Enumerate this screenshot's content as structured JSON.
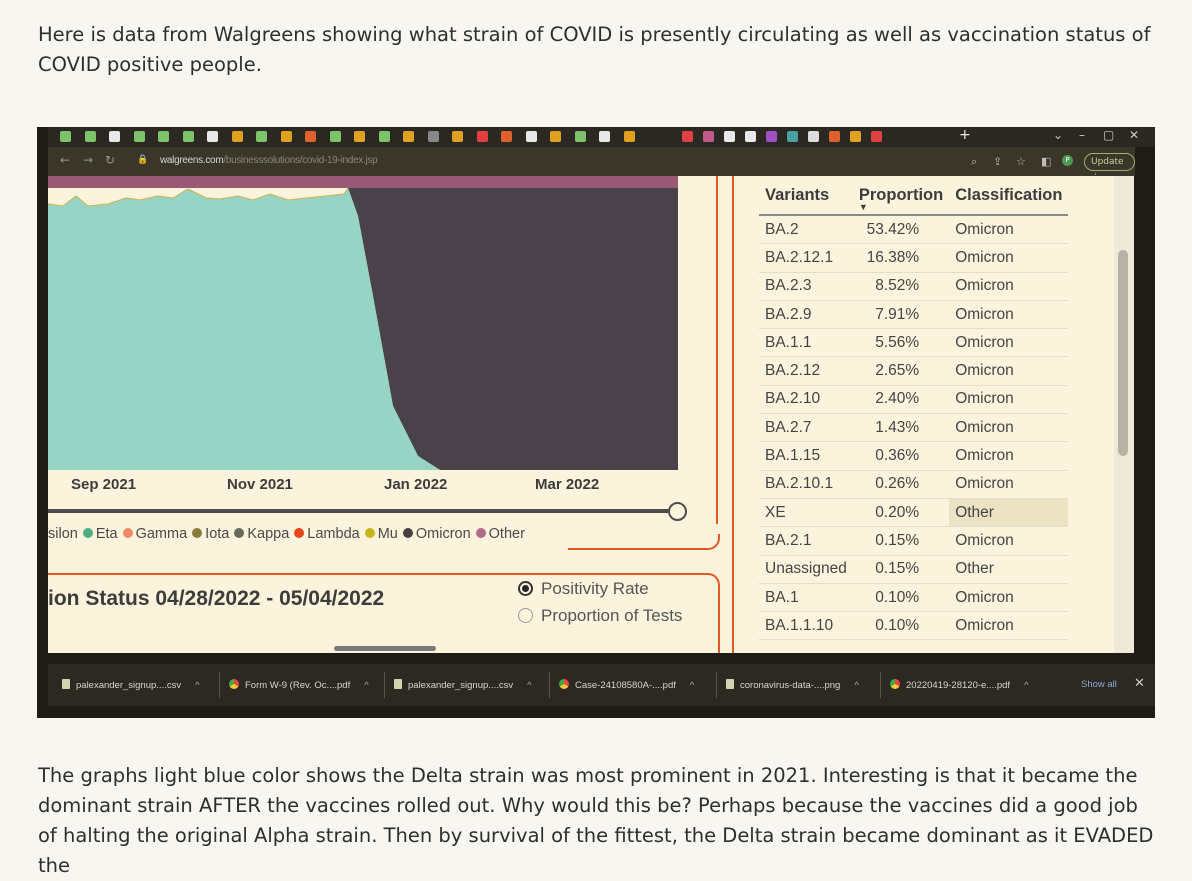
{
  "intro_text": "Here is data from Walgreens showing what strain of COVID is presently circulating as well as vaccination status of COVID positive people.",
  "outro_text": "The graphs light blue color shows the Delta strain was most prominent in 2021. Interesting is that it became the dominant strain AFTER the vaccines rolled out. Why would this be? Perhaps because the vaccines did a good job of halting the original Alpha strain. Then by survival of the fittest, the Delta strain became dominant as it EVADED the",
  "browser": {
    "url_host": "walgreens.com",
    "url_path": "/businesssolutions/covid-19-index.jsp",
    "update_label": "Update",
    "window_controls": {
      "minimize": "–",
      "maximize": "▢",
      "close": "✕"
    },
    "new_tab": "+"
  },
  "chart": {
    "x_ticks": [
      "Sep 2021",
      "Nov 2021",
      "Jan 2022",
      "Mar 2022"
    ],
    "legend": [
      {
        "name": "silon",
        "color": ""
      },
      {
        "name": "Eta",
        "color": "#4caf7d"
      },
      {
        "name": "Gamma",
        "color": "#f08a6a"
      },
      {
        "name": "Iota",
        "color": "#8a7a3a"
      },
      {
        "name": "Kappa",
        "color": "#6a6a5a"
      },
      {
        "name": "Lambda",
        "color": "#e8461c"
      },
      {
        "name": "Mu",
        "color": "#c9b41a"
      },
      {
        "name": "Omicron",
        "color": "#463f45"
      },
      {
        "name": "Other",
        "color": "#b06a8a"
      }
    ],
    "status_title": "ion Status 04/28/2022 - 05/04/2022",
    "radio_positivity": "Positivity Rate",
    "radio_proportion": "Proportion of Tests"
  },
  "chart_data": {
    "type": "area",
    "x": [
      "Sep 2021",
      "Nov 2021",
      "Jan 2022",
      "Mar 2022"
    ],
    "series_colors": {
      "Delta": "#96d4c6",
      "Omicron": "#4a424a",
      "Other": "#9a5a75"
    }
  },
  "table": {
    "headers": [
      "Variants",
      "Proportion",
      "Classification"
    ],
    "sort_indicator": "▼",
    "rows": [
      [
        "BA.2",
        "53.42%",
        "Omicron"
      ],
      [
        "BA.2.12.1",
        "16.38%",
        "Omicron"
      ],
      [
        "BA.2.3",
        "8.52%",
        "Omicron"
      ],
      [
        "BA.2.9",
        "7.91%",
        "Omicron"
      ],
      [
        "BA.1.1",
        "5.56%",
        "Omicron"
      ],
      [
        "BA.2.12",
        "2.65%",
        "Omicron"
      ],
      [
        "BA.2.10",
        "2.40%",
        "Omicron"
      ],
      [
        "BA.2.7",
        "1.43%",
        "Omicron"
      ],
      [
        "BA.1.15",
        "0.36%",
        "Omicron"
      ],
      [
        "BA.2.10.1",
        "0.26%",
        "Omicron"
      ],
      [
        "XE",
        "0.20%",
        "Other"
      ],
      [
        "BA.2.1",
        "0.15%",
        "Omicron"
      ],
      [
        "Unassigned",
        "0.15%",
        "Other"
      ],
      [
        "BA.1",
        "0.10%",
        "Omicron"
      ],
      [
        "BA.1.1.10",
        "0.10%",
        "Omicron"
      ]
    ]
  },
  "downloads": [
    {
      "name": "palexander_signup....csv",
      "icon": "file-icon"
    },
    {
      "name": "Form W-9 (Rev. Oc....pdf",
      "icon": "chrome-icon"
    },
    {
      "name": "palexander_signup....csv",
      "icon": "file-icon"
    },
    {
      "name": "Case-24108580A-....pdf",
      "icon": "chrome-icon"
    },
    {
      "name": "coronavirus-data-....png",
      "icon": "file-icon"
    },
    {
      "name": "20220419-28120-e....pdf",
      "icon": "chrome-icon"
    }
  ],
  "downloads_show_all": "Show all",
  "downloads_close": "✕"
}
